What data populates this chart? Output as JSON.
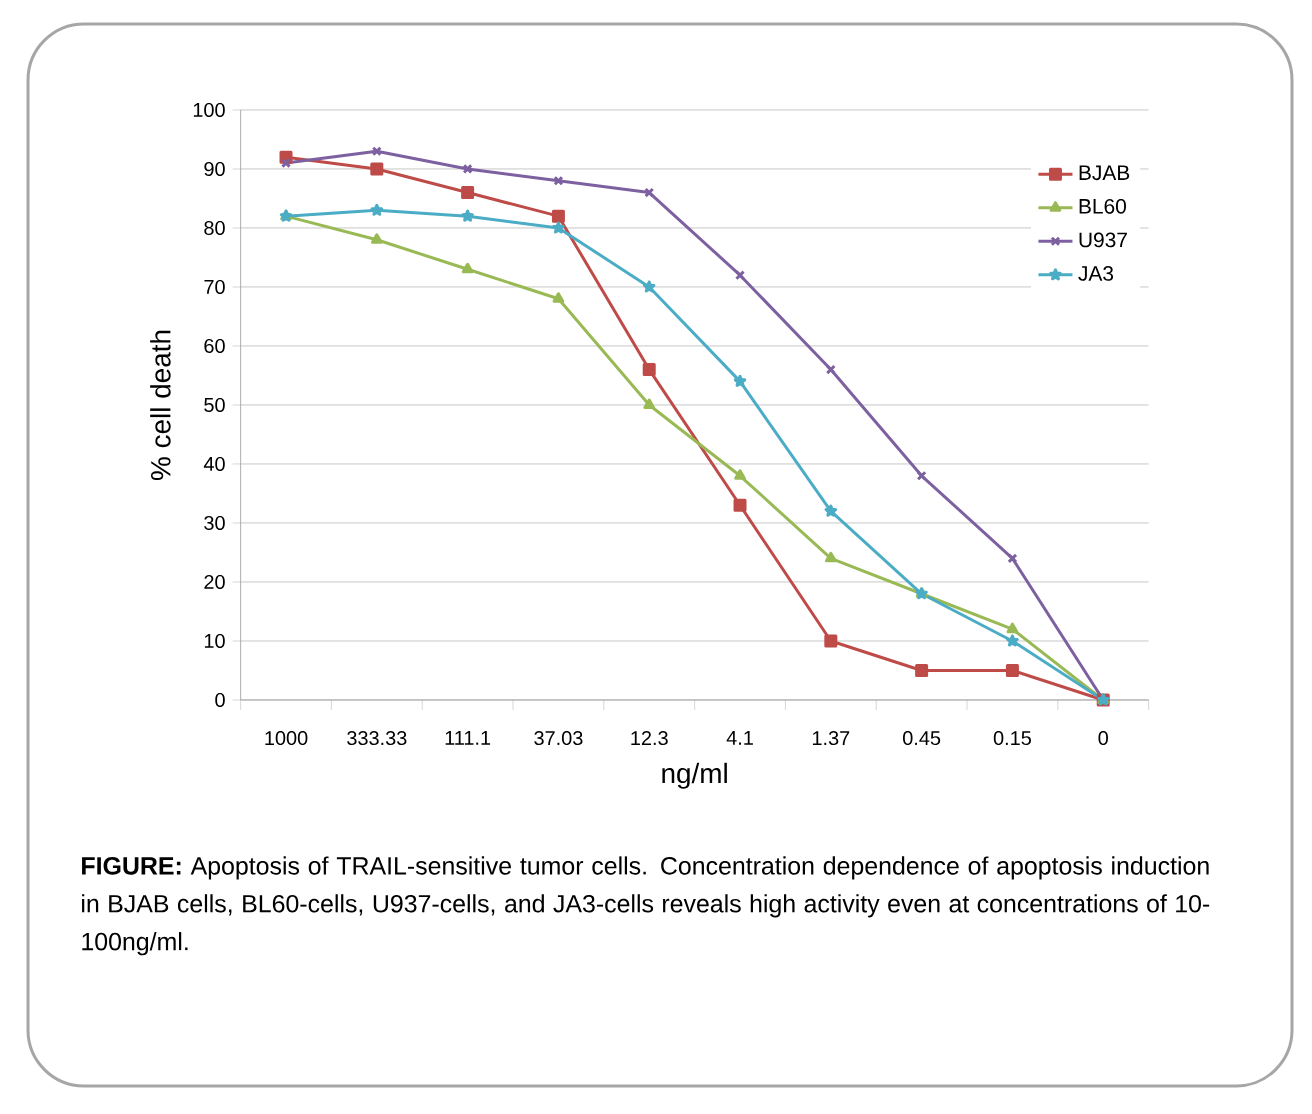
{
  "chart_data": {
    "type": "line",
    "xlabel": "ng/ml",
    "ylabel": "% cell death",
    "categories": [
      "1000",
      "333.33",
      "111.1",
      "37.03",
      "12.3",
      "4.1",
      "1.37",
      "0.45",
      "0.15",
      "0"
    ],
    "series": [
      {
        "name": "BJAB",
        "color": "#be4b48",
        "marker": "square",
        "values": [
          92,
          90,
          86,
          82,
          56,
          33,
          10,
          5,
          5,
          0
        ]
      },
      {
        "name": "BL60",
        "color": "#98b954",
        "marker": "triangle",
        "values": [
          82,
          78,
          73,
          68,
          50,
          38,
          24,
          18,
          12,
          0
        ]
      },
      {
        "name": "U937",
        "color": "#7d60a0",
        "marker": "cross",
        "values": [
          91,
          93,
          90,
          88,
          86,
          72,
          56,
          38,
          24,
          0
        ]
      },
      {
        "name": "JA3",
        "color": "#4bacc6",
        "marker": "star",
        "values": [
          82,
          83,
          82,
          80,
          70,
          54,
          32,
          18,
          10,
          0
        ]
      }
    ],
    "ylim": [
      0,
      100
    ],
    "yticks": [
      0,
      10,
      20,
      30,
      40,
      50,
      60,
      70,
      80,
      90,
      100
    ],
    "grid": "y",
    "legend": "top right",
    "line_style": "solid",
    "annotations": [
      "**FIGURE:** Apoptosis of TRAIL-sensitive tumor cells. Concentration dependence of apoptosis induction in BJAB cells, BL60-cells, U937-cells, and JA3-cells reveals high activity even at concentrations of 10-100ng/ml."
    ]
  }
}
